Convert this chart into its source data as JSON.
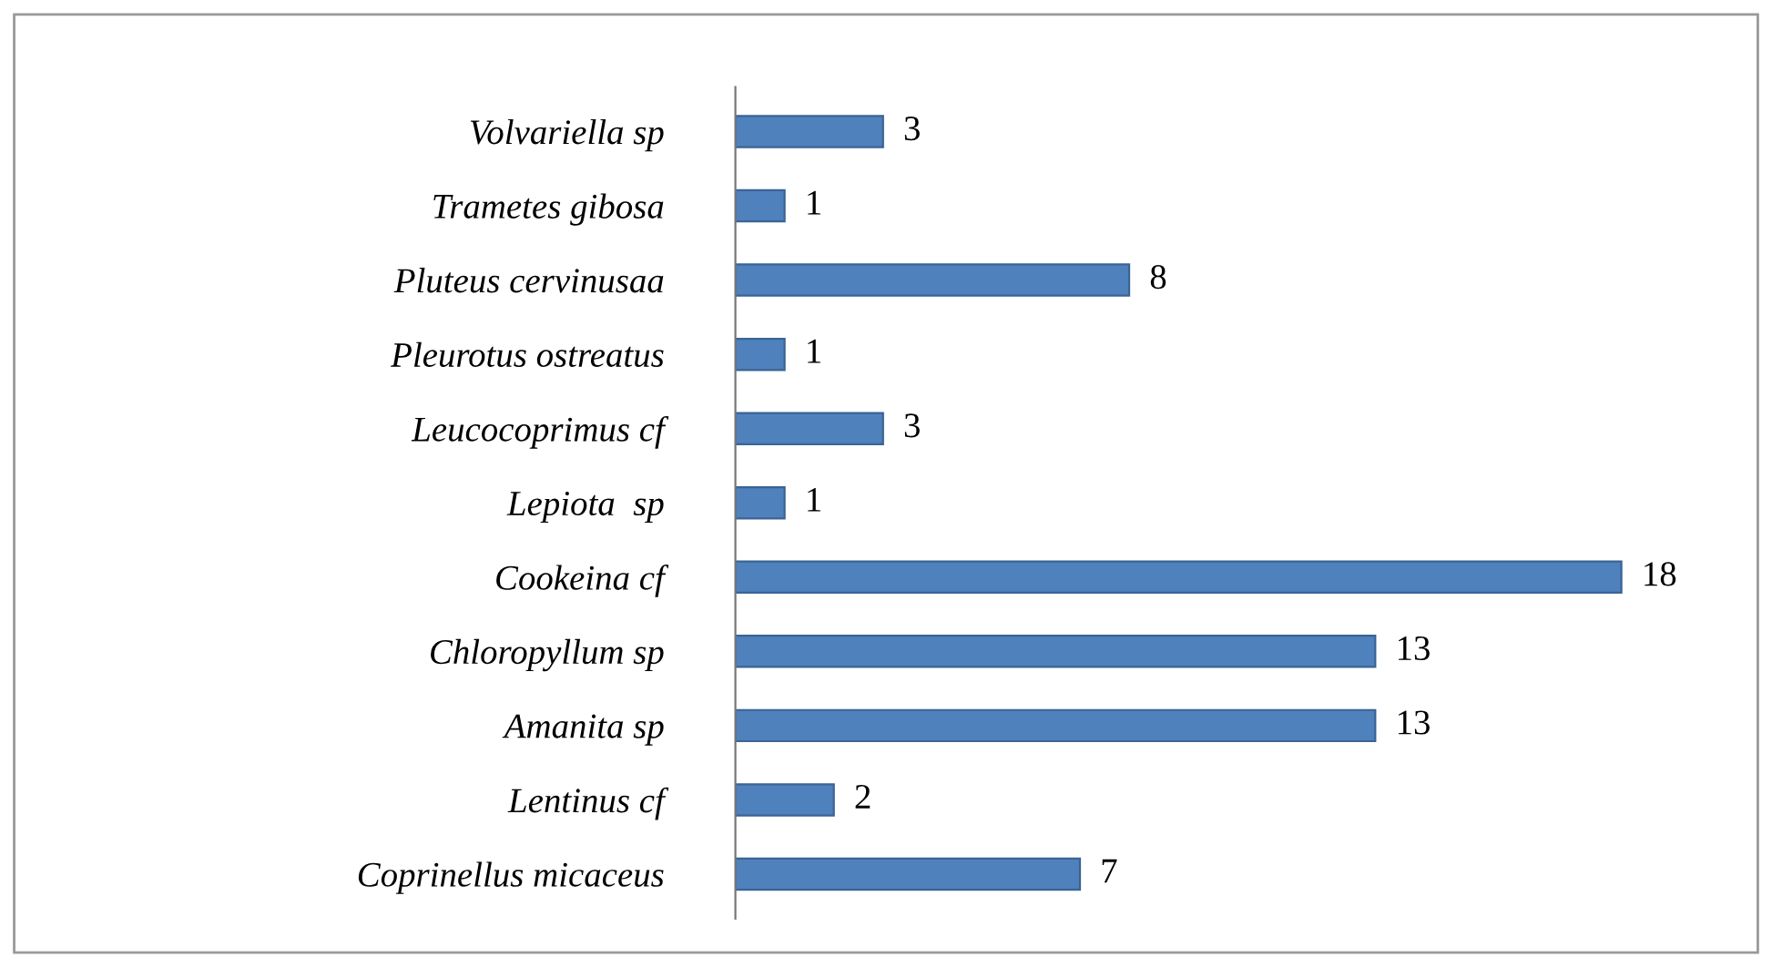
{
  "chart_data": {
    "type": "bar",
    "orientation": "horizontal",
    "categories": [
      "Volvariella sp",
      "Trametes gibosa",
      "Pluteus cervinusaa",
      "Pleurotus ostreatus",
      "Leucocoprimus cf",
      "Lepiota  sp",
      "Cookeina cf",
      "Chloropyllum sp",
      "Amanita sp",
      "Lentinus cf",
      "Coprinellus micaceus"
    ],
    "values": [
      3,
      1,
      8,
      1,
      3,
      1,
      18,
      13,
      13,
      2,
      7
    ],
    "color": "#4f81bd",
    "data_labels": true,
    "tick_labels": "y",
    "grid": false,
    "legend": false
  }
}
